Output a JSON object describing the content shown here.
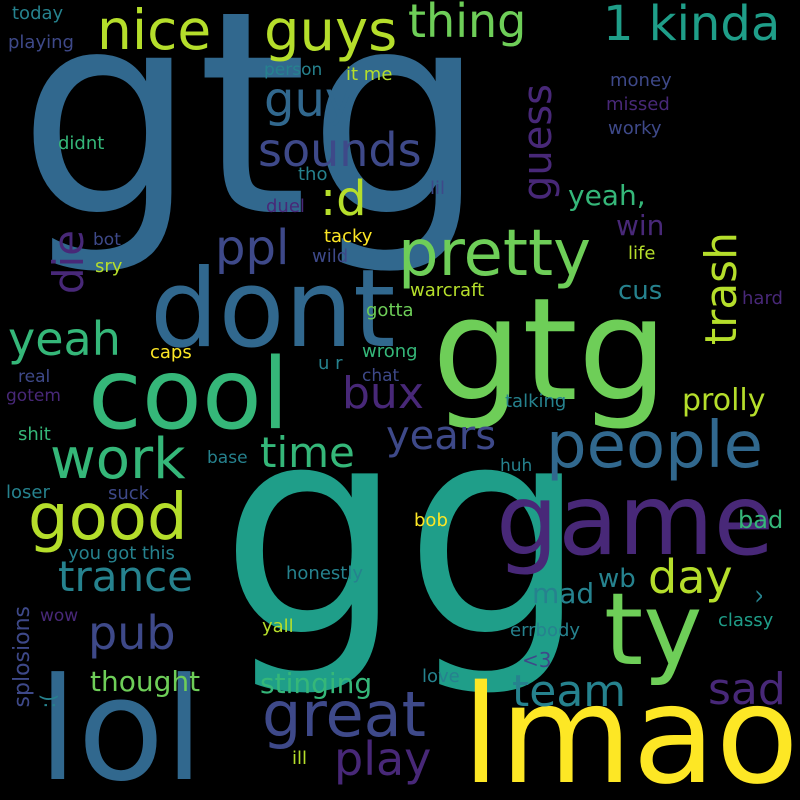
{
  "colors": {
    "background": "#000000",
    "palette": [
      "#fde725",
      "#b5de2b",
      "#6ece58",
      "#35b779",
      "#1f9e89",
      "#26828e",
      "#31688e",
      "#3e4989",
      "#482878",
      "#440154"
    ]
  },
  "words": {
    "gg": "gg",
    "gtg": "gtg",
    "gtg_2": "gtg",
    "lol": "lol",
    "lmao": "lmao",
    "dont": "dont",
    "cool": "cool",
    "game": "game",
    "ty": "ty",
    "nice": "nice",
    "guys": "guys",
    "thing": "thing",
    "kinda": "1 kinda",
    "people": "people",
    "good": "good",
    "work": "work",
    "pretty": "pretty",
    "great": "great",
    "sounds": "sounds",
    "guy": "guy",
    "ppl": "ppl",
    "d": ":d",
    "yeah": "yeah",
    "yeah_comma": "yeah,",
    "die": "die",
    "trance": "trance",
    "pub": "pub",
    "day": "day",
    "team": "team",
    "sad": "sad",
    "play": "play",
    "years": "years",
    "time": "time",
    "bux": "bux",
    "trash": "trash",
    "guess": "guess",
    "prolly": "prolly",
    "thought": "thought",
    "stinging": "stinging",
    "win": "win",
    "cus": "cus",
    "mad": "mad",
    "wb": "wb",
    "bad": "bad",
    "splosions": "splosions",
    "today": "today",
    "playing": "playing",
    "person": "person",
    "it_me": "it me",
    "money": "money",
    "missed": "missed",
    "worky": "worky",
    "didnt": "didnt",
    "tho": "tho",
    "lil": "lil",
    "duel": "duel",
    "tacky": "tacky",
    "bot": "bot",
    "wild": "wild",
    "life": "life",
    "sry": "sry",
    "warcraft": "warcraft",
    "hard": "hard",
    "gotta": "gotta",
    "caps": "caps",
    "wrong": "wrong",
    "u_r": "u r",
    "real": "real",
    "chat": "chat",
    "gotem": "gotem",
    "talking": "talking",
    "shit": "shit",
    "base": "base",
    "huh": "huh",
    "loser": "loser",
    "suck": "suck",
    "bob": "bob",
    "you_got_this": "you got this",
    "honestly": "honestly",
    "wow": "wow",
    "yall": "yall",
    "errbody": "errbody",
    "classy": "classy",
    "caret": "^",
    "heart": "<3",
    "love": "love",
    "frown": ":(",
    "ill": "ill"
  }
}
